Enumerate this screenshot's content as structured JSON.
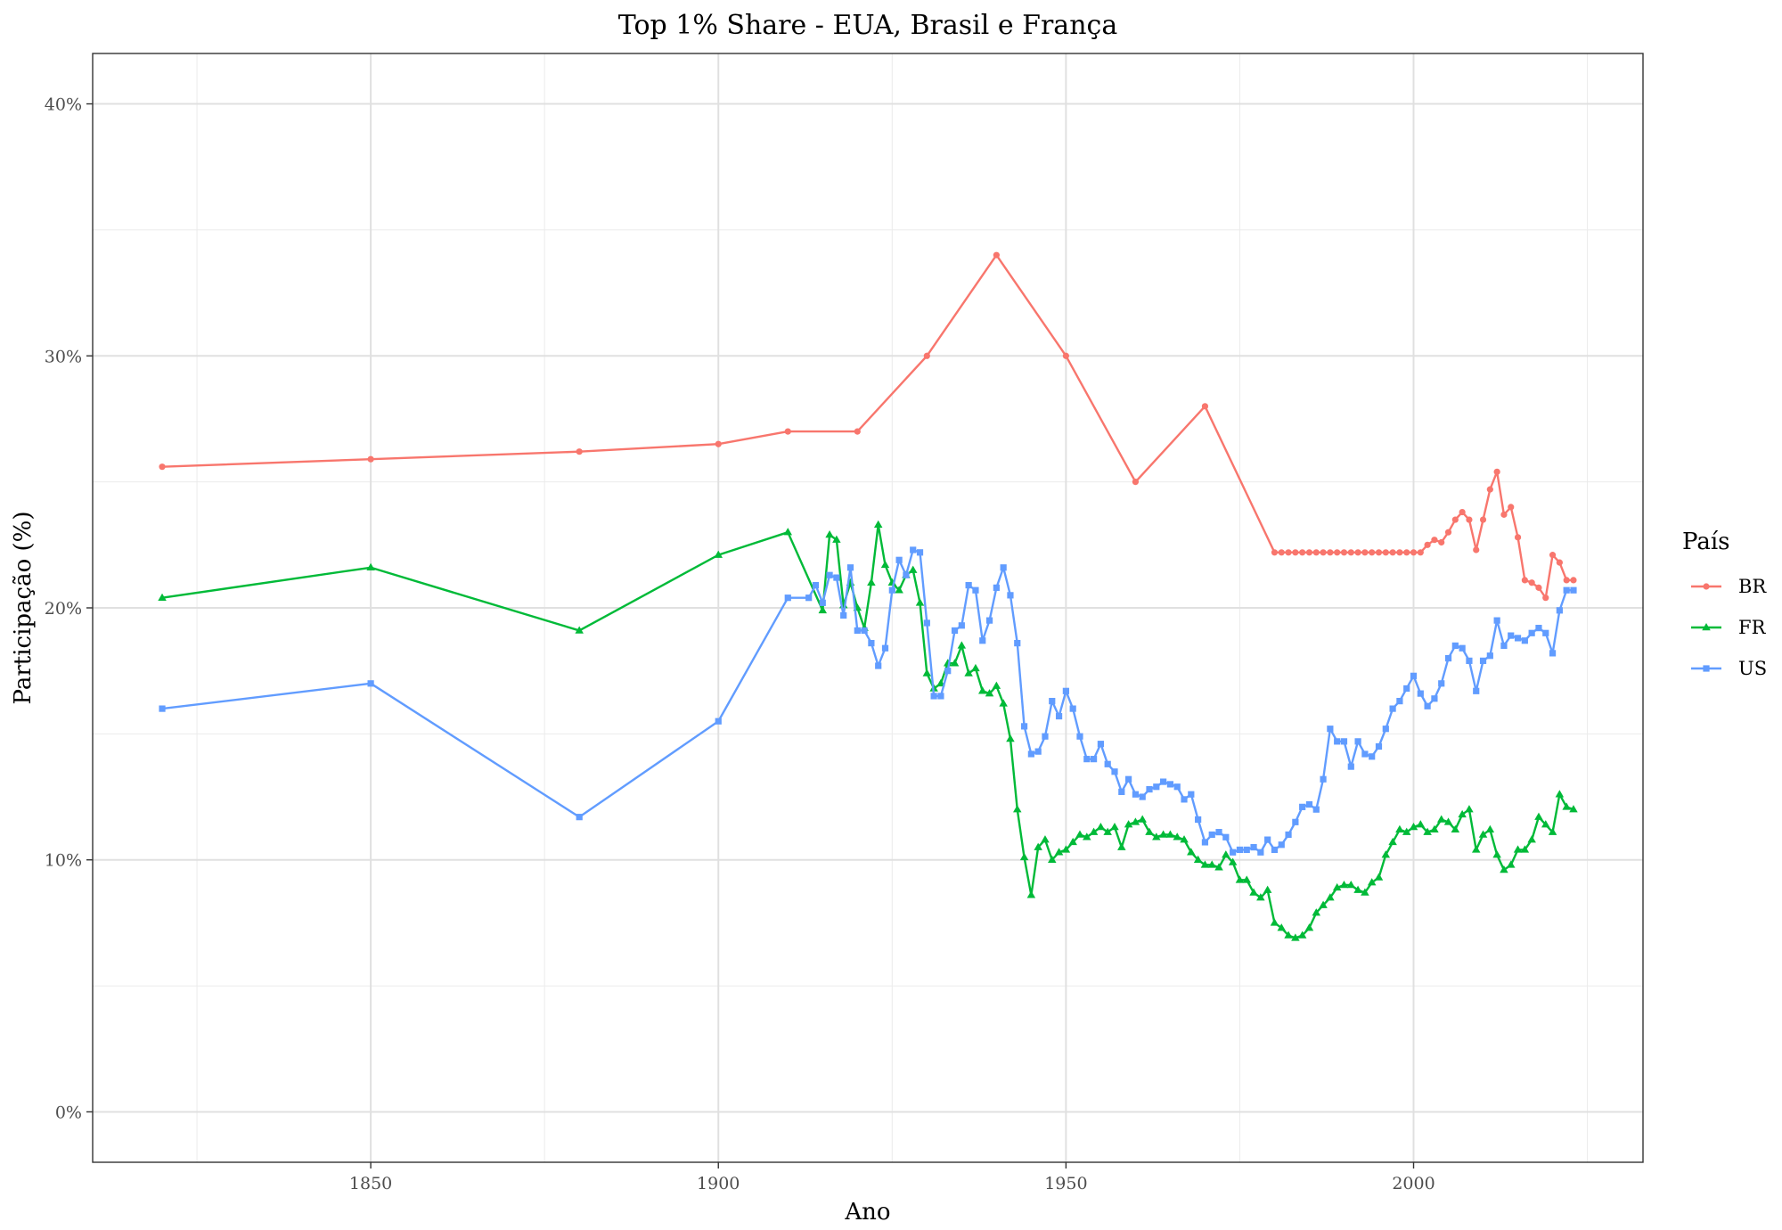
{
  "chart_data": {
    "type": "line",
    "title": "Top 1% Share - EUA, Brasil e França",
    "xlabel": "Ano",
    "ylabel": "Participação (%)",
    "xlim": [
      1810,
      2033
    ],
    "ylim": [
      -2,
      42
    ],
    "x_ticks": [
      1850,
      1900,
      1950,
      2000
    ],
    "x_minor_ticks": [
      1825,
      1875,
      1925,
      1975,
      2025
    ],
    "y_ticks": [
      0,
      10,
      20,
      30,
      40
    ],
    "y_tick_labels": [
      "0%",
      "10%",
      "20%",
      "30%",
      "40%"
    ],
    "y_minor_ticks": [
      5,
      15,
      25,
      35
    ],
    "grid": true,
    "legend_title": "País",
    "legend_position": "right",
    "series": [
      {
        "name": "BR",
        "color": "#F8766D",
        "marker": "circle",
        "x": [
          1820,
          1850,
          1880,
          1900,
          1910,
          1920,
          1930,
          1940,
          1950,
          1960,
          1970,
          1980,
          1981,
          1982,
          1983,
          1984,
          1985,
          1986,
          1987,
          1988,
          1989,
          1990,
          1991,
          1992,
          1993,
          1994,
          1995,
          1996,
          1997,
          1998,
          1999,
          2000,
          2001,
          2002,
          2003,
          2004,
          2005,
          2006,
          2007,
          2008,
          2009,
          2010,
          2011,
          2012,
          2013,
          2014,
          2015,
          2016,
          2017,
          2018,
          2019,
          2020,
          2021,
          2022,
          2023
        ],
        "y": [
          25.6,
          25.9,
          26.2,
          26.5,
          27.0,
          27.0,
          30.0,
          34.0,
          30.0,
          25.0,
          28.0,
          22.2,
          22.2,
          22.2,
          22.2,
          22.2,
          22.2,
          22.2,
          22.2,
          22.2,
          22.2,
          22.2,
          22.2,
          22.2,
          22.2,
          22.2,
          22.2,
          22.2,
          22.2,
          22.2,
          22.2,
          22.2,
          22.2,
          22.5,
          22.7,
          22.6,
          23.0,
          23.5,
          23.8,
          23.5,
          22.3,
          23.5,
          24.7,
          25.4,
          23.7,
          24.0,
          22.8,
          21.1,
          21.0,
          20.8,
          20.4,
          22.1,
          21.8,
          21.1,
          21.1
        ]
      },
      {
        "name": "FR",
        "color": "#00BA38",
        "marker": "triangle",
        "x": [
          1820,
          1850,
          1880,
          1900,
          1910,
          1915,
          1916,
          1917,
          1918,
          1919,
          1920,
          1921,
          1922,
          1923,
          1924,
          1925,
          1926,
          1927,
          1928,
          1929,
          1930,
          1931,
          1932,
          1933,
          1934,
          1935,
          1936,
          1937,
          1938,
          1939,
          1940,
          1941,
          1942,
          1943,
          1944,
          1945,
          1946,
          1947,
          1948,
          1949,
          1950,
          1951,
          1952,
          1953,
          1954,
          1955,
          1956,
          1957,
          1958,
          1959,
          1960,
          1961,
          1962,
          1963,
          1964,
          1965,
          1966,
          1967,
          1968,
          1969,
          1970,
          1971,
          1972,
          1973,
          1974,
          1975,
          1976,
          1977,
          1978,
          1979,
          1980,
          1981,
          1982,
          1983,
          1984,
          1985,
          1986,
          1987,
          1988,
          1989,
          1990,
          1991,
          1992,
          1993,
          1994,
          1995,
          1996,
          1997,
          1998,
          1999,
          2000,
          2001,
          2002,
          2003,
          2004,
          2005,
          2006,
          2007,
          2008,
          2009,
          2010,
          2011,
          2012,
          2013,
          2014,
          2015,
          2016,
          2017,
          2018,
          2019,
          2020,
          2021,
          2022,
          2023
        ],
        "y": [
          20.4,
          21.6,
          19.1,
          22.1,
          23.0,
          19.9,
          22.9,
          22.7,
          20.1,
          21.0,
          20.0,
          19.2,
          21.0,
          23.3,
          21.7,
          21.0,
          20.7,
          21.3,
          21.5,
          20.2,
          17.4,
          16.8,
          17.0,
          17.8,
          17.8,
          18.5,
          17.4,
          17.6,
          16.7,
          16.6,
          16.9,
          16.2,
          14.8,
          12.0,
          10.1,
          8.6,
          10.5,
          10.8,
          10.0,
          10.3,
          10.4,
          10.7,
          11.0,
          10.9,
          11.1,
          11.3,
          11.1,
          11.3,
          10.5,
          11.4,
          11.5,
          11.6,
          11.1,
          10.9,
          11.0,
          11.0,
          10.9,
          10.8,
          10.3,
          10.0,
          9.8,
          9.8,
          9.7,
          10.2,
          9.9,
          9.2,
          9.2,
          8.7,
          8.5,
          8.8,
          7.5,
          7.3,
          7.0,
          6.9,
          7.0,
          7.3,
          7.9,
          8.2,
          8.5,
          8.9,
          9.0,
          9.0,
          8.8,
          8.7,
          9.1,
          9.3,
          10.2,
          10.7,
          11.2,
          11.1,
          11.3,
          11.4,
          11.1,
          11.2,
          11.6,
          11.5,
          11.2,
          11.8,
          12.0,
          10.4,
          11.0,
          11.2,
          10.2,
          9.6,
          9.8,
          10.4,
          10.4,
          10.8,
          11.7,
          11.4,
          11.1,
          12.6,
          12.1,
          12.0
        ]
      },
      {
        "name": "US",
        "color": "#619CFF",
        "marker": "square",
        "x": [
          1820,
          1850,
          1880,
          1900,
          1910,
          1913,
          1914,
          1915,
          1916,
          1917,
          1918,
          1919,
          1920,
          1921,
          1922,
          1923,
          1924,
          1925,
          1926,
          1927,
          1928,
          1929,
          1930,
          1931,
          1932,
          1933,
          1934,
          1935,
          1936,
          1937,
          1938,
          1939,
          1940,
          1941,
          1942,
          1943,
          1944,
          1945,
          1946,
          1947,
          1948,
          1949,
          1950,
          1951,
          1952,
          1953,
          1954,
          1955,
          1956,
          1957,
          1958,
          1959,
          1960,
          1961,
          1962,
          1963,
          1964,
          1965,
          1966,
          1967,
          1968,
          1969,
          1970,
          1971,
          1972,
          1973,
          1974,
          1975,
          1976,
          1977,
          1978,
          1979,
          1980,
          1981,
          1982,
          1983,
          1984,
          1985,
          1986,
          1987,
          1988,
          1989,
          1990,
          1991,
          1992,
          1993,
          1994,
          1995,
          1996,
          1997,
          1998,
          1999,
          2000,
          2001,
          2002,
          2003,
          2004,
          2005,
          2006,
          2007,
          2008,
          2009,
          2010,
          2011,
          2012,
          2013,
          2014,
          2015,
          2016,
          2017,
          2018,
          2019,
          2020,
          2021,
          2022,
          2023
        ],
        "y": [
          16.0,
          17.0,
          11.7,
          15.5,
          20.4,
          20.4,
          20.9,
          20.2,
          21.3,
          21.2,
          19.7,
          21.6,
          19.1,
          19.1,
          18.6,
          17.7,
          18.4,
          20.7,
          21.9,
          21.3,
          22.3,
          22.2,
          19.4,
          16.5,
          16.5,
          17.5,
          19.1,
          19.3,
          20.9,
          20.7,
          18.7,
          19.5,
          20.8,
          21.6,
          20.5,
          18.6,
          15.3,
          14.2,
          14.3,
          14.9,
          16.3,
          15.7,
          16.7,
          16.0,
          14.9,
          14.0,
          14.0,
          14.6,
          13.8,
          13.5,
          12.7,
          13.2,
          12.6,
          12.5,
          12.8,
          12.9,
          13.1,
          13.0,
          12.9,
          12.4,
          12.6,
          11.6,
          10.7,
          11.0,
          11.1,
          10.9,
          10.3,
          10.4,
          10.4,
          10.5,
          10.3,
          10.8,
          10.4,
          10.6,
          11.0,
          11.5,
          12.1,
          12.2,
          12.0,
          13.2,
          15.2,
          14.7,
          14.7,
          13.7,
          14.7,
          14.2,
          14.1,
          14.5,
          15.2,
          16.0,
          16.3,
          16.8,
          17.3,
          16.6,
          16.1,
          16.4,
          17.0,
          18.0,
          18.5,
          18.4,
          17.9,
          16.7,
          17.9,
          18.1,
          19.5,
          18.5,
          18.9,
          18.8,
          18.7,
          19.0,
          19.2,
          19.0,
          18.2,
          19.9,
          20.7,
          20.7
        ]
      }
    ]
  }
}
